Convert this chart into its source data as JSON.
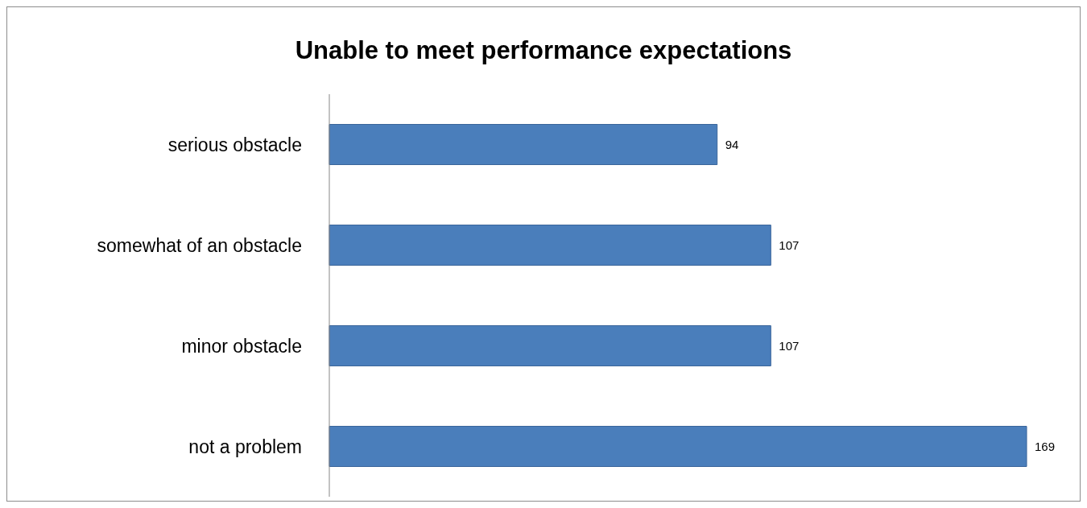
{
  "chart_data": {
    "type": "bar",
    "orientation": "horizontal",
    "title": "Unable to meet performance expectations",
    "categories": [
      "serious obstacle",
      "somewhat of an obstacle",
      "minor obstacle",
      "not a problem"
    ],
    "values": [
      94,
      107,
      107,
      169
    ],
    "color": "#4a7ebb",
    "data_labels": true
  }
}
